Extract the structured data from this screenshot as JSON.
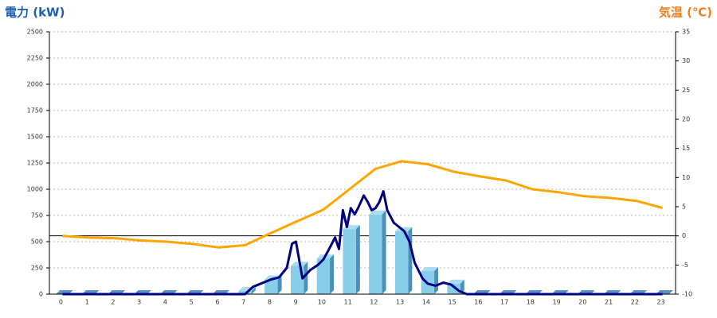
{
  "chart_data": {
    "type": "bar",
    "title_left": "電力 (kW)",
    "title_right": "気温 (℃)",
    "categories": [
      "0",
      "1",
      "2",
      "3",
      "4",
      "5",
      "6",
      "7",
      "8",
      "9",
      "10",
      "11",
      "12",
      "13",
      "14",
      "15",
      "16",
      "17",
      "18",
      "19",
      "20",
      "21",
      "22",
      "23"
    ],
    "values": [
      0,
      0,
      0,
      0,
      0,
      0,
      0,
      30,
      140,
      270,
      340,
      620,
      760,
      600,
      220,
      100,
      0,
      0,
      0,
      0,
      0,
      0,
      0,
      0
    ],
    "color": "#87ceeb",
    "lines": [
      {
        "color": "#000080",
        "x": [
          0,
          7,
          7.3,
          7.6,
          8,
          8.3,
          8.6,
          8.8,
          8.95,
          9.2,
          9.5,
          9.8,
          10,
          10.2,
          10.45,
          10.6,
          10.75,
          10.9,
          11.05,
          11.2,
          11.35,
          11.55,
          11.7,
          11.85,
          12,
          12.15,
          12.3,
          12.45,
          12.7,
          12.9,
          13.1,
          13.3,
          13.5,
          13.8,
          14,
          14.3,
          14.6,
          14.9,
          15.2,
          15.5,
          23
        ],
        "values": [
          0,
          0,
          70,
          100,
          140,
          160,
          250,
          480,
          500,
          150,
          230,
          280,
          330,
          420,
          540,
          430,
          800,
          640,
          820,
          760,
          830,
          940,
          880,
          800,
          820,
          880,
          980,
          800,
          680,
          640,
          600,
          500,
          300,
          150,
          100,
          80,
          110,
          90,
          30,
          0,
          0
        ]
      },
      {
        "color": "#ffa500",
        "axis": "y2",
        "x": [
          0,
          1,
          2,
          3,
          4,
          5,
          6,
          7,
          8,
          9,
          10,
          11,
          12,
          13,
          14,
          15,
          16,
          17,
          18,
          19,
          20,
          21,
          22,
          23
        ],
        "values": [
          0,
          -0.3,
          -0.4,
          -0.8,
          -1,
          -1.4,
          -2,
          -1.6,
          0.5,
          2.5,
          4.5,
          8,
          11.5,
          12.8,
          12.3,
          11,
          10.2,
          9.5,
          8,
          7.5,
          6.8,
          6.5,
          6,
          4.8
        ]
      }
    ],
    "xlim": [
      -0.5,
      23.5
    ],
    "ylim": [
      0,
      2500
    ],
    "yticks": [
      0,
      250,
      500,
      750,
      1000,
      1250,
      1500,
      1750,
      2000,
      2250,
      2500
    ],
    "y2lim": [
      -10,
      35
    ],
    "y2ticks": [
      -10,
      -5,
      0,
      5,
      10,
      15,
      20,
      25,
      30,
      35
    ],
    "grid": true
  }
}
